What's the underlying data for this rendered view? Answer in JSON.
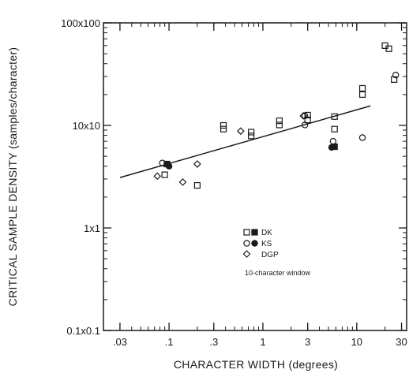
{
  "chart_data": {
    "type": "scatter",
    "xlabel": "CHARACTER WIDTH (degrees)",
    "ylabel": "CRITICAL SAMPLE DENSITY (samples/character)",
    "x_scale": "log",
    "y_scale": "log",
    "xlim": [
      0.02,
      34
    ],
    "ylim": [
      0.1,
      100
    ],
    "x_ticks": [
      0.03,
      0.1,
      0.3,
      1,
      3,
      10,
      30
    ],
    "x_tick_labels": [
      ".03",
      ".1",
      ".3",
      "1",
      "3",
      "10",
      "30"
    ],
    "y_ticks": [
      0.1,
      1,
      10,
      100
    ],
    "y_tick_labels": [
      "0.1x0.1",
      "1x1",
      "10x10",
      "100x100"
    ],
    "grid": false,
    "legend_position": "lower-right",
    "annotation": "10-character window",
    "series": [
      {
        "name": "DK",
        "marker": "square",
        "points": [
          [
            0.09,
            3.3
          ],
          [
            0.2,
            2.6
          ],
          [
            0.38,
            10.0
          ],
          [
            0.38,
            9.2
          ],
          [
            0.75,
            8.6
          ],
          [
            0.75,
            7.9
          ],
          [
            1.5,
            11.1
          ],
          [
            1.5,
            10.1
          ],
          [
            3,
            12.6
          ],
          [
            3,
            11.3
          ],
          [
            5.8,
            12.2
          ],
          [
            5.8,
            9.2
          ],
          [
            11.5,
            23
          ],
          [
            11.5,
            20
          ],
          [
            20,
            60
          ],
          [
            22,
            56
          ],
          [
            25,
            28
          ]
        ]
      },
      {
        "name": "DK",
        "marker": "square-filled",
        "points": [
          [
            0.095,
            4.2
          ],
          [
            5.8,
            6.2
          ]
        ]
      },
      {
        "name": "KS",
        "marker": "circle",
        "points": [
          [
            0.085,
            4.3
          ],
          [
            2.8,
            12.4
          ],
          [
            2.8,
            10.1
          ],
          [
            5.6,
            7.0
          ],
          [
            11.5,
            7.6
          ],
          [
            26,
            31
          ]
        ]
      },
      {
        "name": "KS",
        "marker": "circle-filled",
        "points": [
          [
            0.1,
            4.0
          ],
          [
            5.4,
            6.1
          ]
        ]
      },
      {
        "name": "DGP",
        "marker": "diamond",
        "points": [
          [
            0.075,
            3.2
          ],
          [
            0.14,
            2.8
          ],
          [
            0.2,
            4.2
          ],
          [
            0.58,
            8.8
          ],
          [
            2.7,
            12.4
          ]
        ]
      }
    ],
    "regression_line": {
      "x": [
        0.03,
        14
      ],
      "y": [
        3.1,
        15.5
      ]
    }
  }
}
